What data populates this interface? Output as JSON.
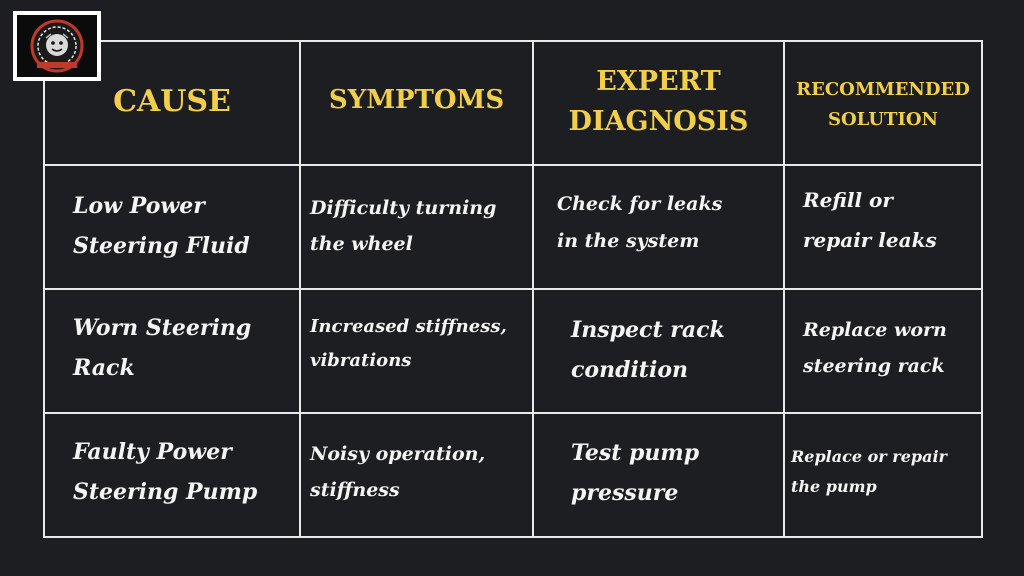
{
  "logo": {
    "text_top": "HIGH GEAR",
    "text_bottom": "AUTOMOTIVE"
  },
  "table": {
    "headers": {
      "cause": "CAUSE",
      "symptoms": "SYMPTOMS",
      "diagnosis_line1": "EXPERT",
      "diagnosis_line2": "DIAGNOSIS",
      "solution_line1": "RECOMMENDED",
      "solution_line2": "SOLUTION"
    },
    "rows": [
      {
        "cause_l1": "Low Power",
        "cause_l2": "Steering Fluid",
        "symptom_l1": "Difficulty turning",
        "symptom_l2": "the wheel",
        "diagnosis_l1": "Check for leaks",
        "diagnosis_l2": "in the system",
        "solution_l1": "Refill or",
        "solution_l2": "repair leaks"
      },
      {
        "cause_l1": "Worn Steering",
        "cause_l2": "Rack",
        "symptom_l1": "Increased stiffness,",
        "symptom_l2": "vibrations",
        "diagnosis_l1": "Inspect rack",
        "diagnosis_l2": "condition",
        "solution_l1": "Replace worn",
        "solution_l2": "steering rack"
      },
      {
        "cause_l1": "Faulty Power",
        "cause_l2": "Steering Pump",
        "symptom_l1": "Noisy operation,",
        "symptom_l2": "stiffness",
        "diagnosis_l1": "Test pump",
        "diagnosis_l2": "pressure",
        "solution_l1": "Replace or repair",
        "solution_l2": "the pump"
      }
    ]
  },
  "colors": {
    "background": "#1c1e21",
    "header_text": "#f2cf4a",
    "body_text": "#f4f4f4",
    "grid_lines": "#e9e9e9"
  }
}
